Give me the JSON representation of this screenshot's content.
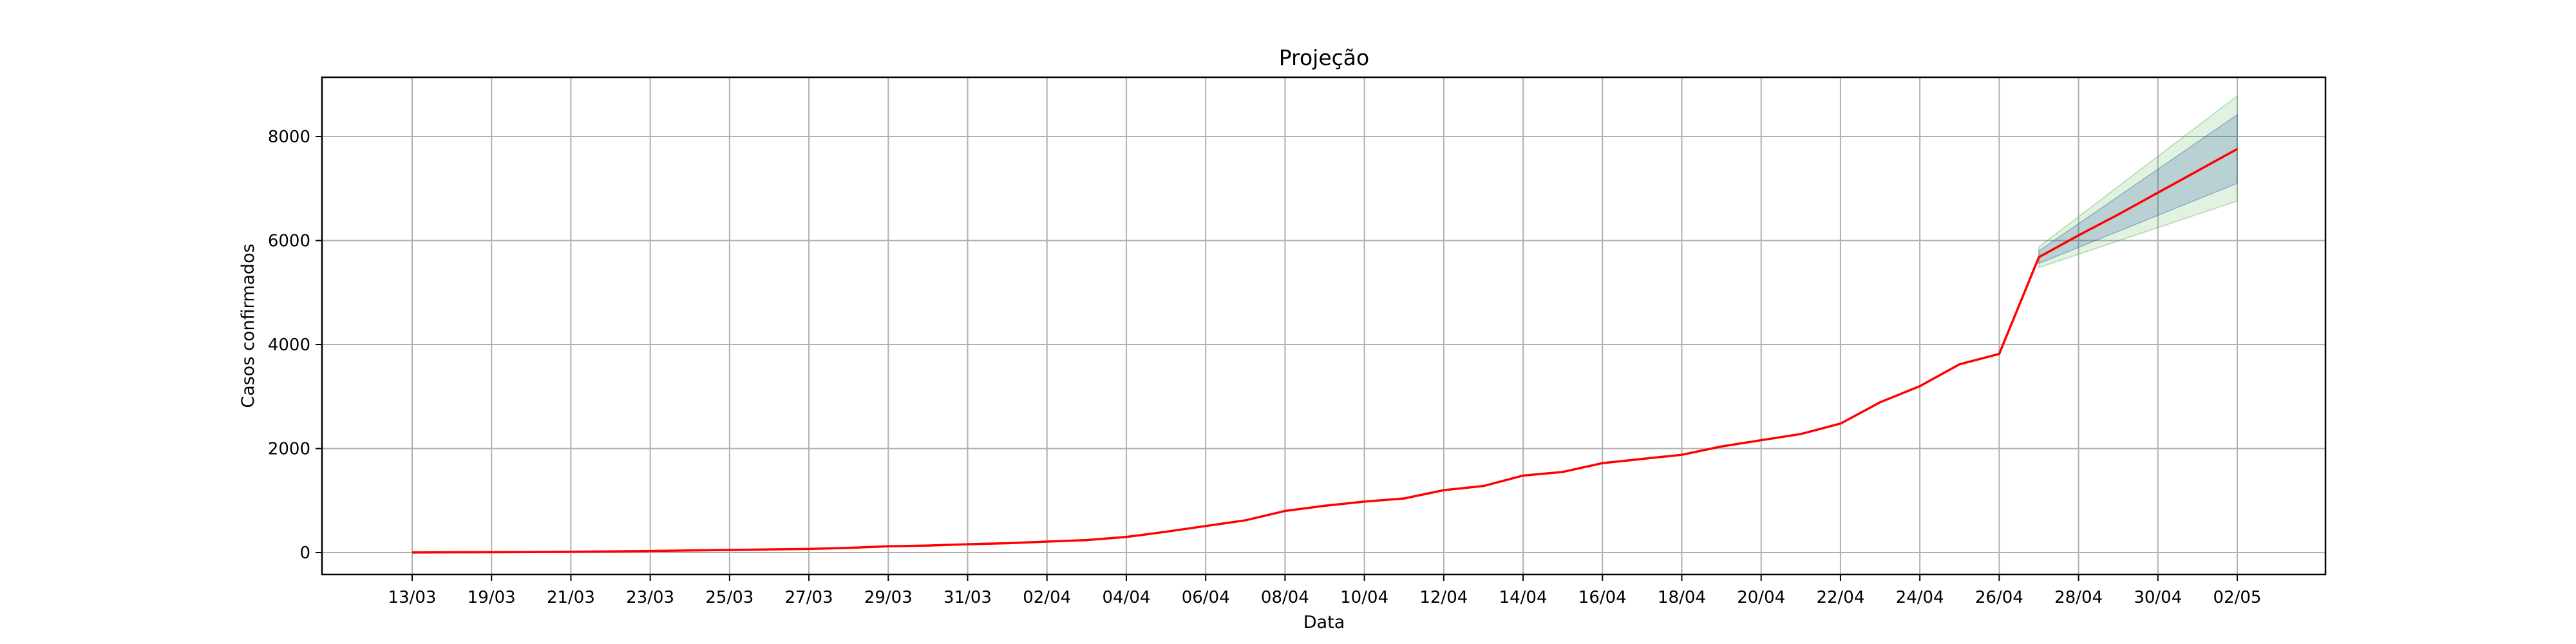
{
  "chart_data": {
    "type": "line",
    "title": "Projeção",
    "xlabel": "Data",
    "ylabel": "Casos confirmados",
    "grid": true,
    "xlim": [
      -1,
      46
    ],
    "ylim": [
      -400,
      9200
    ],
    "x_ticks": [
      {
        "pos": 0,
        "label": "13/03"
      },
      {
        "pos": 2,
        "label": "19/03"
      },
      {
        "pos": 4,
        "label": "21/03"
      },
      {
        "pos": 6,
        "label": "23/03"
      },
      {
        "pos": 8,
        "label": "25/03"
      },
      {
        "pos": 10,
        "label": "27/03"
      },
      {
        "pos": 12,
        "label": "29/03"
      },
      {
        "pos": 14,
        "label": "31/03"
      },
      {
        "pos": 16,
        "label": "02/04"
      },
      {
        "pos": 18,
        "label": "04/04"
      },
      {
        "pos": 20,
        "label": "06/04"
      },
      {
        "pos": 22,
        "label": "08/04"
      },
      {
        "pos": 24,
        "label": "10/04"
      },
      {
        "pos": 26,
        "label": "12/04"
      },
      {
        "pos": 28,
        "label": "14/04"
      },
      {
        "pos": 30,
        "label": "16/04"
      },
      {
        "pos": 32,
        "label": "18/04"
      },
      {
        "pos": 34,
        "label": "20/04"
      },
      {
        "pos": 36,
        "label": "22/04"
      },
      {
        "pos": 38,
        "label": "24/04"
      },
      {
        "pos": 40,
        "label": "26/04"
      },
      {
        "pos": 42,
        "label": "28/04"
      },
      {
        "pos": 44,
        "label": "30/04"
      },
      {
        "pos": 46,
        "label": "02/05"
      }
    ],
    "y_ticks": [
      0,
      2000,
      4000,
      6000,
      8000
    ],
    "series": [
      {
        "color": "#ff0000",
        "x": [
          0,
          1,
          2,
          3,
          4,
          5,
          6,
          7,
          8,
          9,
          10,
          11,
          12,
          13,
          14,
          15,
          16,
          17,
          18,
          19,
          20,
          21,
          22,
          23,
          24,
          25,
          26,
          27,
          28,
          29,
          30,
          31,
          32,
          33,
          34,
          35,
          36,
          37,
          38,
          39,
          40,
          41,
          42,
          43,
          44,
          45,
          46
        ],
        "y": [
          2,
          4,
          6,
          10,
          16,
          22,
          30,
          40,
          50,
          60,
          70,
          90,
          120,
          135,
          160,
          180,
          210,
          240,
          300,
          400,
          510,
          620,
          800,
          900,
          980,
          1040,
          1200,
          1280,
          1480,
          1550,
          1720,
          1800,
          1880,
          2040,
          2160,
          2280,
          2480,
          2890,
          3200,
          3620,
          3820,
          5680,
          6100,
          6500,
          6920,
          7340,
          7760
        ]
      }
    ],
    "bands": [
      {
        "color": "#2ca02c",
        "opacity": 0.14,
        "x": [
          41,
          46
        ],
        "lower": [
          5480,
          6760
        ],
        "upper": [
          5880,
          8780
        ]
      },
      {
        "color": "#1f4e9a",
        "opacity": 0.2,
        "x": [
          41,
          46
        ],
        "lower": [
          5560,
          7100
        ],
        "upper": [
          5800,
          8420
        ]
      }
    ]
  }
}
